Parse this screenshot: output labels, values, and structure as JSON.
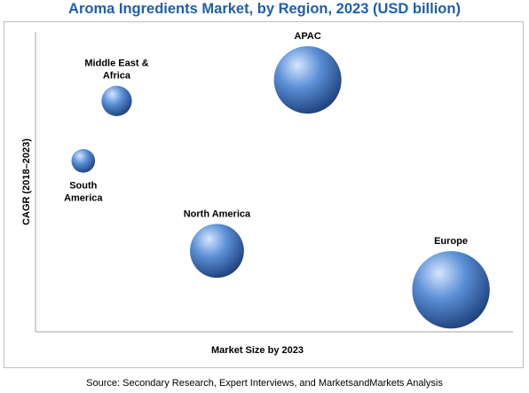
{
  "colors": {
    "title": "#1f5fae",
    "axis": "#a6a6a6",
    "bubble_light": "#d6e6ff",
    "bubble_mid": "#5b8fd6",
    "bubble_dark": "#1c3f7a"
  },
  "source": "Source: Secondary Research, Expert Interviews, and MarketsandMarkets Analysis",
  "chart_data": {
    "type": "bubble",
    "title": "Aroma Ingredients Market, by Region, 2023 (USD billion)",
    "xlabel": "Market Size by 2023",
    "ylabel": "CAGR (2018–2023)",
    "axis_ticks": false,
    "grid": false,
    "legend": "none",
    "points": [
      {
        "label_lines": [
          "Middle East &",
          "Africa"
        ],
        "x": 0.17,
        "y": 0.77,
        "size": 0.45,
        "label_pos": "above"
      },
      {
        "label_lines": [
          "South",
          "America"
        ],
        "x": 0.1,
        "y": 0.57,
        "size": 0.35,
        "label_pos": "below"
      },
      {
        "label_lines": [
          "APAC"
        ],
        "x": 0.57,
        "y": 0.84,
        "size": 1.0,
        "label_pos": "above"
      },
      {
        "label_lines": [
          "North America"
        ],
        "x": 0.38,
        "y": 0.27,
        "size": 0.8,
        "label_pos": "above"
      },
      {
        "label_lines": [
          "Europe"
        ],
        "x": 0.87,
        "y": 0.14,
        "size": 1.15,
        "label_pos": "above"
      }
    ]
  }
}
